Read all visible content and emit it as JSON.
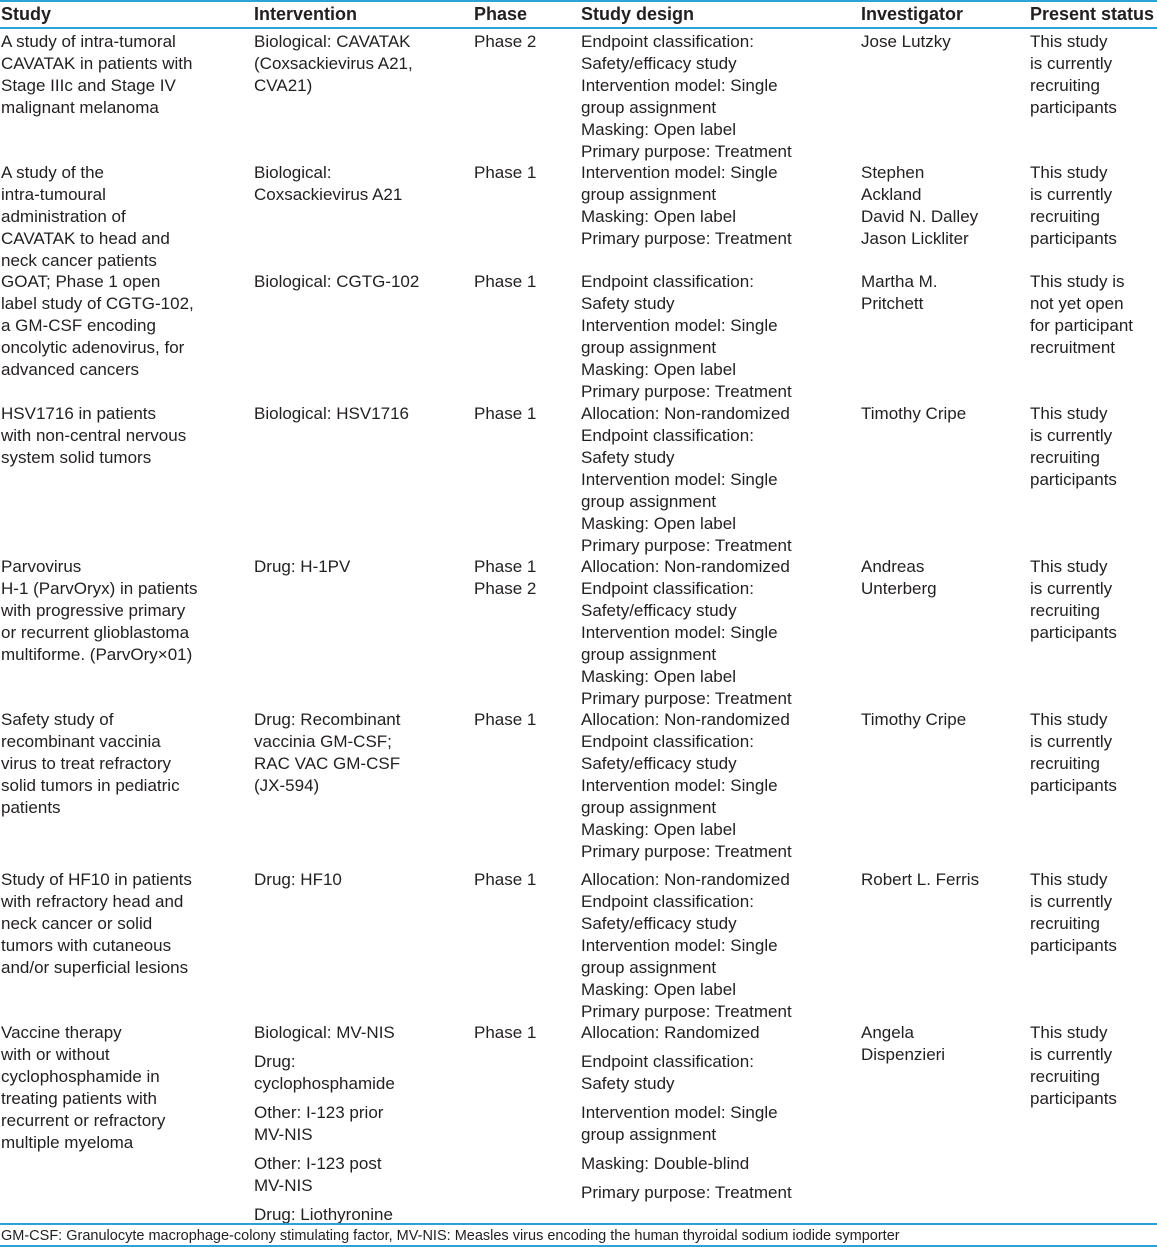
{
  "table": {
    "columns": [
      "Study",
      "Intervention",
      "Phase",
      "Study design",
      "Investigator",
      "Present status"
    ],
    "rows": [
      [
        [
          "A study of intra-tumoral\nCAVATAK in patients with\nStage IIIc and Stage IV\nmalignant melanoma"
        ],
        [
          "Biological: CAVATAK\n(Coxsackievirus A21,\nCVA21)"
        ],
        [
          "Phase 2"
        ],
        [
          "Endpoint classification:\nSafety/efficacy study\nIntervention model: Single\ngroup assignment\nMasking: Open label\nPrimary purpose: Treatment"
        ],
        [
          "Jose Lutzky"
        ],
        [
          "This study\nis currently\nrecruiting\nparticipants"
        ]
      ],
      [
        [
          "A study of the\nintra-tumoural\nadministration of\nCAVATAK to head and\nneck cancer patients"
        ],
        [
          "Biological:\nCoxsackievirus A21"
        ],
        [
          "Phase 1"
        ],
        [
          "Intervention model: Single\ngroup assignment\nMasking: Open label\nPrimary purpose: Treatment"
        ],
        [
          "Stephen\nAckland\nDavid N. Dalley\nJason Lickliter"
        ],
        [
          "This study\nis currently\nrecruiting\nparticipants"
        ]
      ],
      [
        [
          "GOAT; Phase 1 open\nlabel study of CGTG-102,\na GM-CSF encoding\noncolytic adenovirus, for\nadvanced cancers"
        ],
        [
          "Biological: CGTG-102"
        ],
        [
          "Phase 1"
        ],
        [
          "Endpoint classification:\nSafety study\nIntervention model: Single\ngroup assignment\nMasking: Open label\nPrimary purpose: Treatment"
        ],
        [
          "Martha M.\nPritchett"
        ],
        [
          "This study is\nnot yet open\nfor participant\nrecruitment"
        ]
      ],
      [
        [
          "HSV1716 in patients\nwith non-central nervous\nsystem solid tumors"
        ],
        [
          "Biological: HSV1716"
        ],
        [
          "Phase 1"
        ],
        [
          "Allocation: Non-randomized\nEndpoint classification:\nSafety study\nIntervention model: Single\ngroup assignment\nMasking: Open label\nPrimary purpose: Treatment"
        ],
        [
          "Timothy Cripe"
        ],
        [
          "This study\nis currently\nrecruiting\nparticipants"
        ]
      ],
      [
        [
          "Parvovirus\nH-1 (ParvOryx) in patients\nwith progressive primary\nor recurrent glioblastoma\nmultiforme. (ParvOry×01)"
        ],
        [
          "Drug: H-1PV"
        ],
        [
          "Phase 1\nPhase 2"
        ],
        [
          "Allocation: Non-randomized\nEndpoint classification:\nSafety/efficacy study\nIntervention model: Single\ngroup assignment\nMasking: Open label\nPrimary purpose: Treatment"
        ],
        [
          "Andreas\nUnterberg"
        ],
        [
          "This study\nis currently\nrecruiting\nparticipants"
        ]
      ],
      [
        [
          "Safety study of\nrecombinant vaccinia\nvirus to treat refractory\nsolid tumors in pediatric\npatients"
        ],
        [
          "Drug: Recombinant\nvaccinia GM-CSF;\nRAC VAC GM-CSF\n(JX-594)"
        ],
        [
          "Phase 1"
        ],
        [
          "Allocation: Non-randomized\nEndpoint classification:\nSafety/efficacy study\nIntervention model: Single\ngroup assignment\nMasking: Open label\nPrimary purpose: Treatment"
        ],
        [
          "Timothy Cripe"
        ],
        [
          "This study\nis currently\nrecruiting\nparticipants"
        ]
      ],
      [
        [
          "Study of HF10 in patients\nwith refractory head and\nneck cancer or solid\ntumors with cutaneous\nand/or superficial lesions"
        ],
        [
          "Drug: HF10"
        ],
        [
          "Phase 1"
        ],
        [
          "Allocation: Non-randomized\nEndpoint classification:\nSafety/efficacy study\nIntervention model: Single\ngroup assignment\nMasking: Open label\nPrimary purpose: Treatment"
        ],
        [
          "Robert L. Ferris"
        ],
        [
          "This study\nis currently\nrecruiting\nparticipants"
        ]
      ],
      [
        [
          "Vaccine therapy\nwith or without\ncyclophosphamide in\ntreating patients with\nrecurrent or refractory\nmultiple myeloma"
        ],
        [
          "Biological: MV-NIS",
          "Drug:\ncyclophosphamide",
          "Other: I-123 prior\nMV-NIS",
          "Other: I-123 post\nMV-NIS",
          "Drug: Liothyronine"
        ],
        [
          "Phase 1"
        ],
        [
          "Allocation: Randomized",
          "Endpoint classification:\nSafety study",
          "Intervention model: Single\ngroup assignment",
          "Masking: Double-blind",
          "Primary purpose: Treatment"
        ],
        [
          "Angela\nDispenzieri"
        ],
        [
          "This study\nis currently\nrecruiting\nparticipants"
        ]
      ]
    ]
  },
  "footer": "GM-CSF: Granulocyte macrophage-colony stimulating factor, MV-NIS: Measles virus encoding the human thyroidal sodium iodide symporter",
  "colors": {
    "rule": "#2aa3d9",
    "text": "#231f20"
  }
}
